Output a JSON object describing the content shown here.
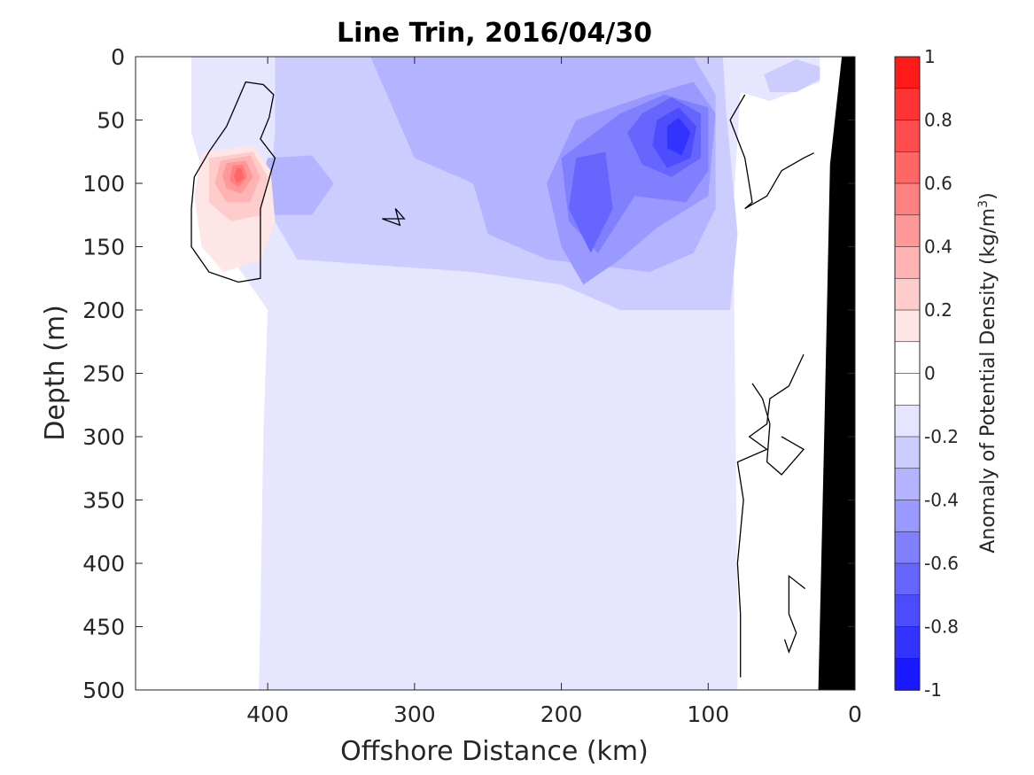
{
  "chart_data": {
    "type": "filled-contour",
    "title": "Line Trin, 2016/04/30",
    "xlabel": "Offshore Distance (km)",
    "ylabel": "Depth (m)",
    "colorbar_label": "Anomaly of Potential Density (kg/m",
    "colorbar_label_sup": "3",
    "colorbar_label_close": ")",
    "x_reversed": true,
    "y_reversed": true,
    "xlim": [
      0,
      490
    ],
    "ylim": [
      0,
      500
    ],
    "xticks": [
      400,
      300,
      200,
      100,
      0
    ],
    "yticks": [
      0,
      50,
      100,
      150,
      200,
      250,
      300,
      350,
      400,
      450,
      500
    ],
    "clim": [
      -1,
      1
    ],
    "colorbar_ticks": [
      1,
      0.8,
      0.6,
      0.4,
      0.2,
      0,
      -0.2,
      -0.4,
      -0.6,
      -0.8,
      -1
    ],
    "colorbar_tick_labels": [
      "1",
      "0.8",
      "0.6",
      "0.4",
      "0.2",
      "0",
      "-0.2",
      "-0.4",
      "-0.6",
      "-0.8",
      "-1"
    ],
    "contour_step": 0.1,
    "colormap": {
      "negative_max": "#0000ff",
      "zero": "#ffffff",
      "positive_max": "#ff0000"
    },
    "bathymetry_color": "#000000",
    "bathymetry": [
      [
        0,
        0
      ],
      [
        9,
        0
      ],
      [
        17,
        85
      ],
      [
        21,
        300
      ],
      [
        25,
        500
      ],
      [
        0,
        500
      ]
    ],
    "regions": [
      {
        "level": -0.1,
        "points": [
          [
            452,
            0
          ],
          [
            24,
            0
          ],
          [
            24,
            20
          ],
          [
            58,
            35
          ],
          [
            78,
            28
          ],
          [
            83,
            120
          ],
          [
            80,
            440
          ],
          [
            80,
            500
          ],
          [
            406,
            500
          ],
          [
            405,
            440
          ],
          [
            403,
            300
          ],
          [
            400,
            200
          ],
          [
            430,
            150
          ],
          [
            452,
            60
          ]
        ]
      },
      {
        "level": -0.2,
        "points": [
          [
            395,
            0
          ],
          [
            90,
            0
          ],
          [
            88,
            40
          ],
          [
            80,
            140
          ],
          [
            85,
            200
          ],
          [
            160,
            200
          ],
          [
            200,
            180
          ],
          [
            260,
            170
          ],
          [
            380,
            160
          ],
          [
            400,
            120
          ],
          [
            395,
            60
          ]
        ]
      },
      {
        "level": -0.2,
        "points": [
          [
            40,
            2
          ],
          [
            24,
            8
          ],
          [
            24,
            18
          ],
          [
            40,
            28
          ],
          [
            58,
            28
          ],
          [
            62,
            14
          ]
        ]
      },
      {
        "level": -0.3,
        "points": [
          [
            330,
            0
          ],
          [
            110,
            0
          ],
          [
            95,
            30
          ],
          [
            95,
            120
          ],
          [
            110,
            155
          ],
          [
            140,
            170
          ],
          [
            210,
            160
          ],
          [
            250,
            140
          ],
          [
            260,
            100
          ],
          [
            300,
            80
          ]
        ]
      },
      {
        "level": -0.3,
        "points": [
          [
            400,
            80
          ],
          [
            370,
            78
          ],
          [
            355,
            100
          ],
          [
            370,
            125
          ],
          [
            395,
            125
          ],
          [
            405,
            100
          ]
        ]
      },
      {
        "level": -0.4,
        "points": [
          [
            190,
            50
          ],
          [
            140,
            30
          ],
          [
            110,
            20
          ],
          [
            95,
            45
          ],
          [
            100,
            110
          ],
          [
            135,
            135
          ],
          [
            160,
            160
          ],
          [
            185,
            180
          ],
          [
            200,
            150
          ],
          [
            210,
            100
          ]
        ]
      },
      {
        "level": -0.5,
        "points": [
          [
            160,
            45
          ],
          [
            130,
            30
          ],
          [
            100,
            40
          ],
          [
            100,
            90
          ],
          [
            115,
            115
          ],
          [
            150,
            110
          ],
          [
            175,
            155
          ],
          [
            195,
            130
          ],
          [
            200,
            80
          ]
        ]
      },
      {
        "level": -0.6,
        "points": [
          [
            145,
            45
          ],
          [
            125,
            32
          ],
          [
            105,
            45
          ],
          [
            105,
            80
          ],
          [
            125,
            95
          ],
          [
            145,
            85
          ],
          [
            155,
            60
          ]
        ]
      },
      {
        "level": -0.6,
        "points": [
          [
            190,
            80
          ],
          [
            170,
            75
          ],
          [
            165,
            120
          ],
          [
            180,
            155
          ],
          [
            195,
            120
          ]
        ]
      },
      {
        "level": -0.7,
        "points": [
          [
            135,
            50
          ],
          [
            120,
            40
          ],
          [
            108,
            55
          ],
          [
            112,
            80
          ],
          [
            128,
            88
          ],
          [
            138,
            70
          ]
        ]
      },
      {
        "level": -0.8,
        "points": [
          [
            128,
            55
          ],
          [
            120,
            48
          ],
          [
            112,
            60
          ],
          [
            118,
            78
          ],
          [
            128,
            72
          ]
        ]
      },
      {
        "level": 0.1,
        "points": [
          [
            445,
            75
          ],
          [
            410,
            70
          ],
          [
            398,
            90
          ],
          [
            395,
            130
          ],
          [
            405,
            160
          ],
          [
            430,
            170
          ],
          [
            445,
            150
          ],
          [
            450,
            110
          ]
        ]
      },
      {
        "level": 0.2,
        "points": [
          [
            440,
            80
          ],
          [
            410,
            75
          ],
          [
            400,
            95
          ],
          [
            405,
            125
          ],
          [
            425,
            130
          ],
          [
            440,
            115
          ]
        ]
      },
      {
        "level": 0.3,
        "points": [
          [
            432,
            82
          ],
          [
            412,
            78
          ],
          [
            405,
            95
          ],
          [
            412,
            115
          ],
          [
            428,
            115
          ],
          [
            436,
            100
          ]
        ]
      },
      {
        "level": 0.4,
        "points": [
          [
            428,
            84
          ],
          [
            415,
            82
          ],
          [
            410,
            95
          ],
          [
            418,
            108
          ],
          [
            428,
            104
          ],
          [
            431,
            94
          ]
        ]
      },
      {
        "level": 0.5,
        "points": [
          [
            424,
            86
          ],
          [
            417,
            85
          ],
          [
            414,
            95
          ],
          [
            420,
            103
          ],
          [
            426,
            98
          ]
        ]
      },
      {
        "level": 0.6,
        "points": [
          [
            421,
            88
          ],
          [
            418,
            88
          ],
          [
            416,
            96
          ],
          [
            421,
            100
          ],
          [
            423,
            95
          ]
        ]
      }
    ],
    "zero_contours": [
      {
        "closed": true,
        "points": [
          [
            452,
            120
          ],
          [
            450,
            95
          ],
          [
            440,
            75
          ],
          [
            428,
            55
          ],
          [
            415,
            20
          ],
          [
            403,
            22
          ],
          [
            396,
            30
          ],
          [
            399,
            48
          ],
          [
            405,
            65
          ],
          [
            395,
            80
          ],
          [
            405,
            120
          ],
          [
            405,
            155
          ],
          [
            405,
            175
          ],
          [
            420,
            178
          ],
          [
            440,
            170
          ],
          [
            452,
            150
          ]
        ]
      },
      {
        "closed": true,
        "points": [
          [
            313,
            120
          ],
          [
            307,
            128
          ],
          [
            322,
            128
          ],
          [
            310,
            133
          ]
        ]
      },
      {
        "closed": false,
        "points": [
          [
            78,
            490
          ],
          [
            78,
            440
          ],
          [
            80,
            400
          ],
          [
            76,
            350
          ],
          [
            80,
            320
          ],
          [
            60,
            310
          ],
          [
            72,
            300
          ],
          [
            60,
            290
          ],
          [
            58,
            270
          ],
          [
            45,
            260
          ],
          [
            35,
            235
          ]
        ]
      },
      {
        "closed": false,
        "points": [
          [
            50,
            300
          ],
          [
            35,
            310
          ],
          [
            50,
            330
          ],
          [
            60,
            320
          ],
          [
            58,
            290
          ],
          [
            63,
            270
          ],
          [
            70,
            258
          ]
        ]
      },
      {
        "closed": false,
        "points": [
          [
            34,
            420
          ],
          [
            45,
            410
          ],
          [
            45,
            440
          ],
          [
            40,
            455
          ],
          [
            45,
            470
          ],
          [
            48,
            460
          ]
        ]
      },
      {
        "closed": false,
        "points": [
          [
            75,
            30
          ],
          [
            85,
            50
          ],
          [
            75,
            80
          ],
          [
            70,
            115
          ],
          [
            75,
            120
          ],
          [
            60,
            110
          ],
          [
            50,
            90
          ],
          [
            35,
            80
          ],
          [
            28,
            76
          ]
        ]
      }
    ]
  }
}
